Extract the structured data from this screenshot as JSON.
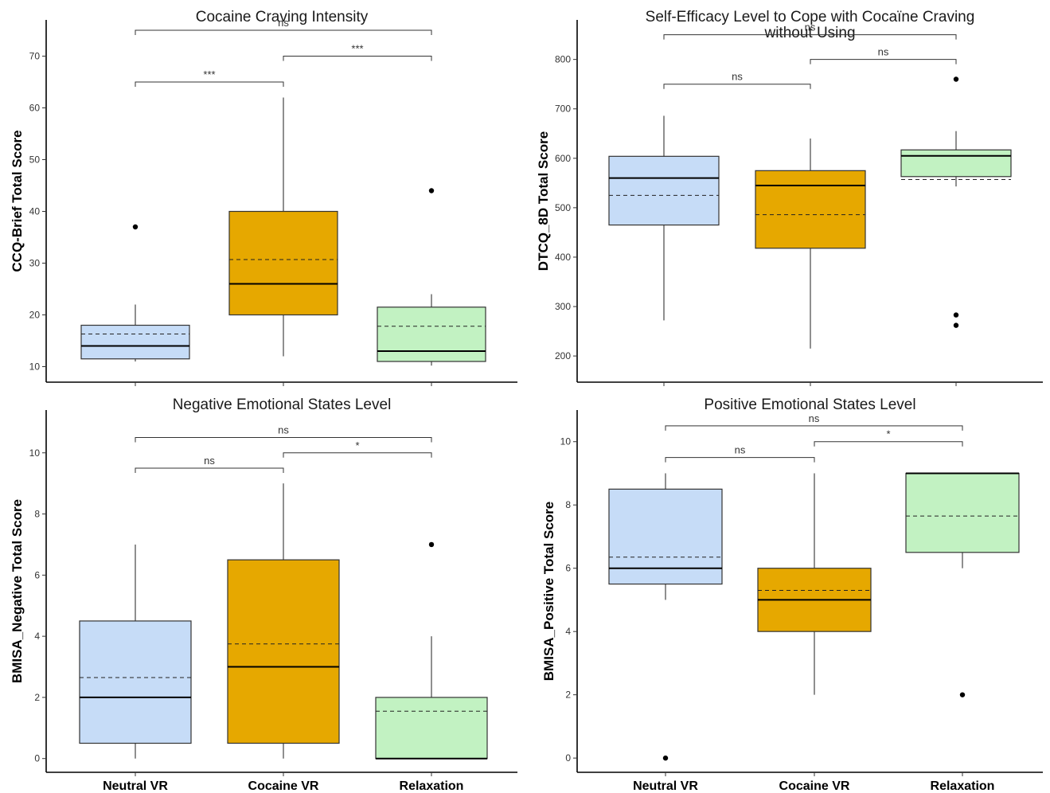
{
  "chart_data": [
    {
      "type": "box",
      "title": "Cocaine Craving Intensity",
      "ylabel": "CCQ-Brief Total Score",
      "ylim": [
        7,
        77
      ],
      "yticks": [
        10,
        20,
        30,
        40,
        50,
        60,
        70
      ],
      "categories": [
        "Neutral VR",
        "Cocaine VR",
        "Relaxation"
      ],
      "show_xlabels": false,
      "boxes": [
        {
          "category": "Neutral VR",
          "fill": "#c6dcf7",
          "whisker_low": 11,
          "q1": 11.5,
          "median": 14,
          "q3": 18,
          "whisker_high": 22,
          "mean": 16.3,
          "outliers": [
            37
          ]
        },
        {
          "category": "Cocaine VR",
          "fill": "#e6a800",
          "whisker_low": 12,
          "q1": 20,
          "median": 26,
          "q3": 40,
          "whisker_high": 62,
          "mean": 30.7,
          "outliers": []
        },
        {
          "category": "Relaxation",
          "fill": "#c2f2c2",
          "whisker_low": 10.2,
          "q1": 11,
          "median": 13,
          "q3": 21.5,
          "whisker_high": 24,
          "mean": 17.8,
          "outliers": [
            44
          ]
        }
      ],
      "comparisons": [
        {
          "from": "Neutral VR",
          "to": "Cocaine VR",
          "y": 65,
          "label": "***"
        },
        {
          "from": "Cocaine VR",
          "to": "Relaxation",
          "y": 70,
          "label": "***"
        },
        {
          "from": "Neutral VR",
          "to": "Relaxation",
          "y": 75,
          "label": "ns"
        }
      ]
    },
    {
      "type": "box",
      "title": [
        "Self-Efficacy Level to Cope with Cocaïne Craving",
        "without Using"
      ],
      "ylabel": "DTCQ_8D Total Score",
      "ylim": [
        147,
        880
      ],
      "yticks": [
        200,
        300,
        400,
        500,
        600,
        700,
        800
      ],
      "categories": [
        "Neutral VR",
        "Cocaine VR",
        "Relaxation"
      ],
      "show_xlabels": false,
      "boxes": [
        {
          "category": "Neutral VR",
          "fill": "#c6dcf7",
          "whisker_low": 272,
          "q1": 465,
          "median": 560,
          "q3": 604,
          "whisker_high": 686,
          "mean": 525,
          "outliers": []
        },
        {
          "category": "Cocaine VR",
          "fill": "#e6a800",
          "whisker_low": 215,
          "q1": 418,
          "median": 545,
          "q3": 575,
          "whisker_high": 640,
          "mean": 486,
          "outliers": []
        },
        {
          "category": "Relaxation",
          "fill": "#c2f2c2",
          "whisker_low": 543,
          "q1": 563,
          "median": 605,
          "q3": 617,
          "whisker_high": 655,
          "mean": 557,
          "outliers": [
            760,
            283,
            262
          ]
        }
      ],
      "comparisons": [
        {
          "from": "Neutral VR",
          "to": "Cocaine VR",
          "y": 750,
          "label": "ns"
        },
        {
          "from": "Cocaine VR",
          "to": "Relaxation",
          "y": 800,
          "label": "ns"
        },
        {
          "from": "Neutral VR",
          "to": "Relaxation",
          "y": 850,
          "label": "ns"
        }
      ]
    },
    {
      "type": "box",
      "title": "Negative Emotional States Level",
      "ylabel": "BMISA_Negative Total Score",
      "ylim": [
        -0.45,
        11.4
      ],
      "yticks": [
        0,
        2,
        4,
        6,
        8,
        10
      ],
      "categories": [
        "Neutral VR",
        "Cocaine VR",
        "Relaxation"
      ],
      "show_xlabels": true,
      "boxes": [
        {
          "category": "Neutral VR",
          "fill": "#c6dcf7",
          "whisker_low": 0,
          "q1": 0.5,
          "median": 2,
          "q3": 4.5,
          "whisker_high": 7,
          "mean": 2.65,
          "outliers": []
        },
        {
          "category": "Cocaine VR",
          "fill": "#e6a800",
          "whisker_low": 0,
          "q1": 0.5,
          "median": 3,
          "q3": 6.5,
          "whisker_high": 9,
          "mean": 3.75,
          "outliers": []
        },
        {
          "category": "Relaxation",
          "fill": "#c2f2c2",
          "whisker_low": 0,
          "q1": 0,
          "median": 0,
          "q3": 2,
          "whisker_high": 4,
          "mean": 1.55,
          "outliers": [
            7
          ]
        }
      ],
      "comparisons": [
        {
          "from": "Neutral VR",
          "to": "Cocaine VR",
          "y": 9.5,
          "label": "ns"
        },
        {
          "from": "Cocaine VR",
          "to": "Relaxation",
          "y": 10,
          "label": "*"
        },
        {
          "from": "Neutral VR",
          "to": "Relaxation",
          "y": 10.5,
          "label": "ns"
        }
      ]
    },
    {
      "type": "box",
      "title": "Positive Emotional States Level",
      "ylabel": "BMISA_Positive Total Score",
      "ylim": [
        -0.45,
        11.0
      ],
      "yticks": [
        0,
        2,
        4,
        6,
        8,
        10
      ],
      "categories": [
        "Neutral VR",
        "Cocaine VR",
        "Relaxation"
      ],
      "show_xlabels": true,
      "boxes": [
        {
          "category": "Neutral VR",
          "fill": "#c6dcf7",
          "whisker_low": 5,
          "q1": 5.5,
          "median": 6,
          "q3": 8.5,
          "whisker_high": 9,
          "mean": 6.35,
          "outliers": [
            0
          ]
        },
        {
          "category": "Cocaine VR",
          "fill": "#e6a800",
          "whisker_low": 2,
          "q1": 4,
          "median": 5,
          "q3": 6,
          "whisker_high": 9,
          "mean": 5.3,
          "outliers": []
        },
        {
          "category": "Relaxation",
          "fill": "#c2f2c2",
          "whisker_low": 6,
          "q1": 6.5,
          "median": 9,
          "q3": 9,
          "whisker_high": 9,
          "mean": 7.65,
          "outliers": [
            2
          ]
        }
      ],
      "comparisons": [
        {
          "from": "Neutral VR",
          "to": "Cocaine VR",
          "y": 9.5,
          "label": "ns"
        },
        {
          "from": "Cocaine VR",
          "to": "Relaxation",
          "y": 10,
          "label": "*"
        },
        {
          "from": "Neutral VR",
          "to": "Relaxation",
          "y": 10.5,
          "label": "ns"
        }
      ]
    }
  ]
}
